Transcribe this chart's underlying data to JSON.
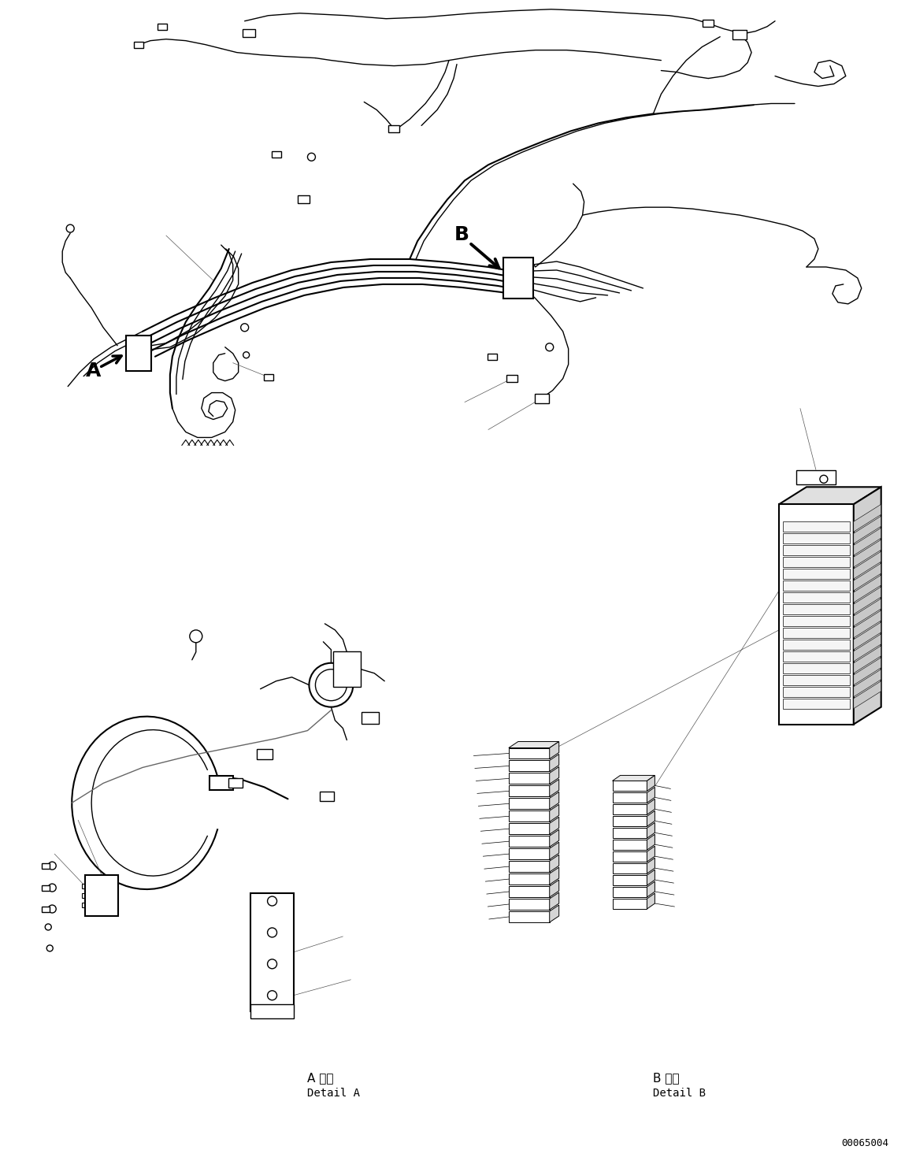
{
  "background_color": "#ffffff",
  "line_color": "#000000",
  "fig_width": 11.63,
  "fig_height": 14.88,
  "dpi": 100,
  "label_A": "A",
  "label_B": "B",
  "label_detail_A_jp": "A 詳細",
  "label_detail_A_en": "Detail A",
  "label_detail_B_jp": "B 詳細",
  "label_detail_B_en": "Detail B",
  "part_number": "00065004"
}
